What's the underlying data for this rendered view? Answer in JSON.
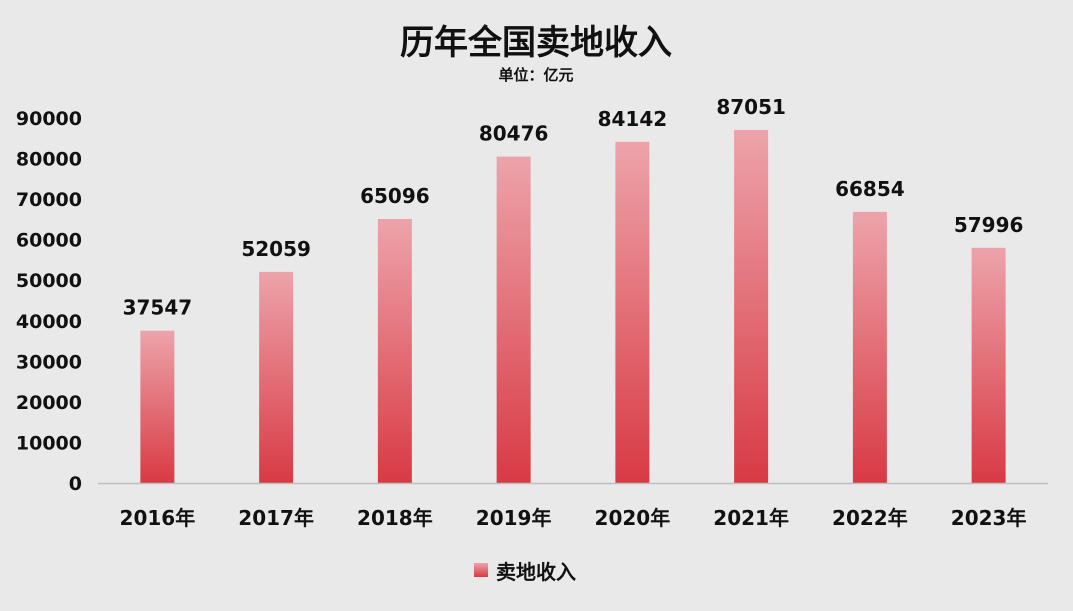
{
  "chart_data": {
    "type": "bar",
    "title": "历年全国卖地收入",
    "subtitle": "单位：亿元",
    "categories": [
      "2016年",
      "2017年",
      "2018年",
      "2019年",
      "2020年",
      "2021年",
      "2022年",
      "2023年"
    ],
    "series": [
      {
        "name": "卖地收入",
        "values": [
          37547,
          52059,
          65096,
          80476,
          84142,
          87051,
          66854,
          57996
        ]
      }
    ],
    "ylim": [
      0,
      90000
    ],
    "yticks": [
      0,
      10000,
      20000,
      30000,
      40000,
      50000,
      60000,
      70000,
      80000,
      90000
    ],
    "grid": false,
    "legend": "bottom-center",
    "colors": {
      "bar_top": "#eda3aa",
      "bar_bottom": "#d83a44",
      "background": "#e9e9e9",
      "axis": "#bfbfbf"
    }
  }
}
